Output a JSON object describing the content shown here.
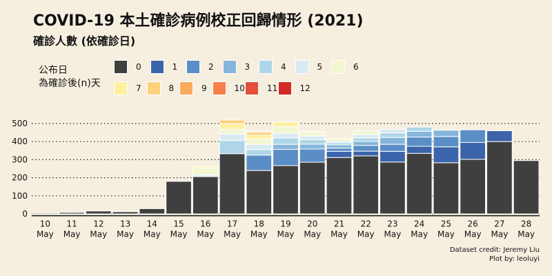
{
  "title": "COVID-19 本土確診病例校正回歸情形 (2021)",
  "subtitle": "確診人數 (依確診日)",
  "legend_title": [
    "公布日",
    "為確診後(n)天"
  ],
  "credit": [
    "Dataset credit: Jeremy Liu",
    "Plot by: leoluyi"
  ],
  "colors": {
    "0": "#3f3f3f",
    "1": "#3b64aa",
    "2": "#5b8ec6",
    "3": "#86b6da",
    "4": "#aed6e8",
    "5": "#d8eaf2",
    "6": "#f2f7d2",
    "7": "#fdf0a0",
    "8": "#fdd17c",
    "9": "#fbaa5c",
    "10": "#f67f4b",
    "11": "#e44e3a",
    "12": "#d32a26"
  },
  "chart_data": {
    "type": "bar",
    "stacked": true,
    "categories": [
      [
        "10",
        "May"
      ],
      [
        "11",
        "May"
      ],
      [
        "12",
        "May"
      ],
      [
        "13",
        "May"
      ],
      [
        "14",
        "May"
      ],
      [
        "15",
        "May"
      ],
      [
        "16",
        "May"
      ],
      [
        "17",
        "May"
      ],
      [
        "18",
        "May"
      ],
      [
        "19",
        "May"
      ],
      [
        "20",
        "May"
      ],
      [
        "21",
        "May"
      ],
      [
        "22",
        "May"
      ],
      [
        "23",
        "May"
      ],
      [
        "24",
        "May"
      ],
      [
        "25",
        "May"
      ],
      [
        "26",
        "May"
      ],
      [
        "27",
        "May"
      ],
      [
        "28",
        "May"
      ]
    ],
    "series": [
      {
        "name": "0",
        "values": [
          5,
          8,
          16,
          12,
          29,
          180,
          206,
          333,
          240,
          267,
          286,
          312,
          321,
          287,
          335,
          283,
          302,
          400,
          295
        ]
      },
      {
        "name": "1",
        "values": [
          0,
          0,
          0,
          0,
          0,
          0,
          0,
          0,
          0,
          0,
          0,
          34,
          26,
          59,
          39,
          88,
          93,
          60,
          0
        ]
      },
      {
        "name": "2",
        "values": [
          0,
          0,
          0,
          0,
          0,
          0,
          0,
          0,
          85,
          90,
          73,
          18,
          32,
          39,
          51,
          57,
          70,
          0,
          0
        ]
      },
      {
        "name": "3",
        "values": [
          0,
          0,
          0,
          0,
          0,
          0,
          0,
          0,
          0,
          28,
          27,
          18,
          22,
          38,
          32,
          35,
          0,
          0,
          0
        ]
      },
      {
        "name": "4",
        "values": [
          0,
          0,
          0,
          0,
          0,
          0,
          0,
          73,
          30,
          35,
          25,
          12,
          20,
          25,
          23,
          0,
          0,
          0,
          0
        ]
      },
      {
        "name": "5",
        "values": [
          0,
          0,
          0,
          0,
          0,
          0,
          10,
          35,
          30,
          25,
          20,
          10,
          18,
          20,
          0,
          0,
          0,
          0,
          0
        ]
      },
      {
        "name": "6",
        "values": [
          0,
          0,
          0,
          0,
          0,
          0,
          40,
          28,
          30,
          38,
          25,
          14,
          20,
          0,
          0,
          0,
          0,
          0,
          0
        ]
      },
      {
        "name": "7",
        "values": [
          0,
          0,
          0,
          0,
          0,
          0,
          8,
          30,
          20,
          25,
          0,
          0,
          0,
          0,
          0,
          0,
          0,
          0,
          0
        ]
      },
      {
        "name": "8",
        "values": [
          0,
          0,
          0,
          0,
          0,
          0,
          0,
          20,
          16,
          0,
          0,
          0,
          0,
          0,
          0,
          0,
          0,
          0,
          0
        ]
      },
      {
        "name": "9",
        "values": [
          0,
          0,
          0,
          0,
          0,
          0,
          0,
          0,
          6,
          0,
          0,
          0,
          0,
          0,
          0,
          0,
          0,
          0,
          0
        ]
      },
      {
        "name": "10",
        "values": [
          0,
          0,
          0,
          0,
          0,
          0,
          0,
          0,
          4,
          0,
          0,
          0,
          0,
          0,
          0,
          0,
          0,
          0,
          0
        ]
      },
      {
        "name": "11",
        "values": [
          0,
          0,
          0,
          0,
          0,
          0,
          0,
          0,
          0,
          0,
          0,
          0,
          0,
          0,
          0,
          0,
          0,
          0,
          0
        ]
      },
      {
        "name": "12",
        "values": [
          0,
          0,
          0,
          0,
          0,
          0,
          0,
          0,
          0,
          0,
          0,
          0,
          0,
          0,
          0,
          0,
          0,
          0,
          0
        ]
      }
    ],
    "ylim": [
      -10,
      540
    ],
    "yticks": [
      0,
      100,
      200,
      300,
      400,
      500
    ],
    "grid": "horizontal-dotted",
    "legend_position": "top-left"
  }
}
